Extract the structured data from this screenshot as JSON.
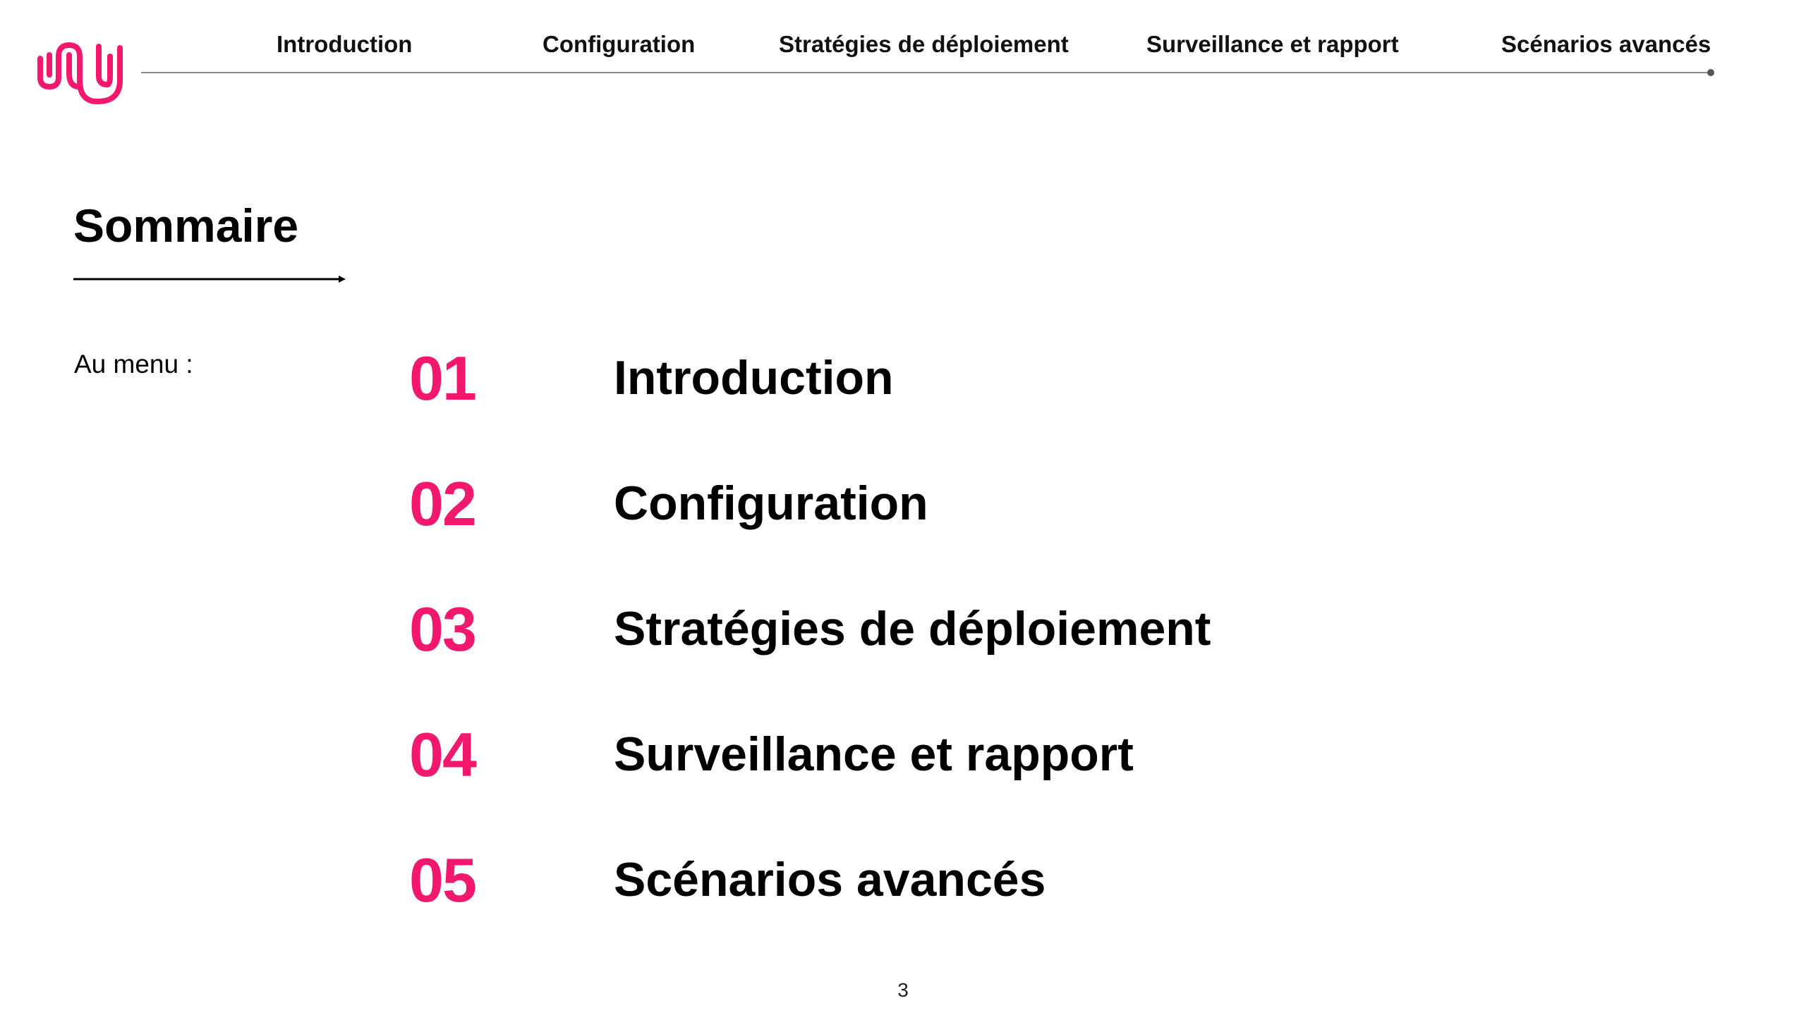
{
  "colors": {
    "accent": "#f2186d",
    "text": "#000000",
    "rule": "#8a8a8a"
  },
  "logo": {
    "icon": "brand-logo-icon"
  },
  "nav": {
    "items": [
      {
        "label": "Introduction"
      },
      {
        "label": "Configuration"
      },
      {
        "label": "Stratégies de déploiement"
      },
      {
        "label": "Surveillance et rapport"
      },
      {
        "label": "Scénarios avancés"
      }
    ]
  },
  "content": {
    "title": "Sommaire",
    "subtitle": "Au menu :",
    "menu": [
      {
        "number": "01",
        "label": "Introduction"
      },
      {
        "number": "02",
        "label": "Configuration"
      },
      {
        "number": "03",
        "label": "Stratégies de déploiement"
      },
      {
        "number": "04",
        "label": "Surveillance et rapport"
      },
      {
        "number": "05",
        "label": "Scénarios avancés"
      }
    ]
  },
  "footer": {
    "page_number": "3"
  }
}
